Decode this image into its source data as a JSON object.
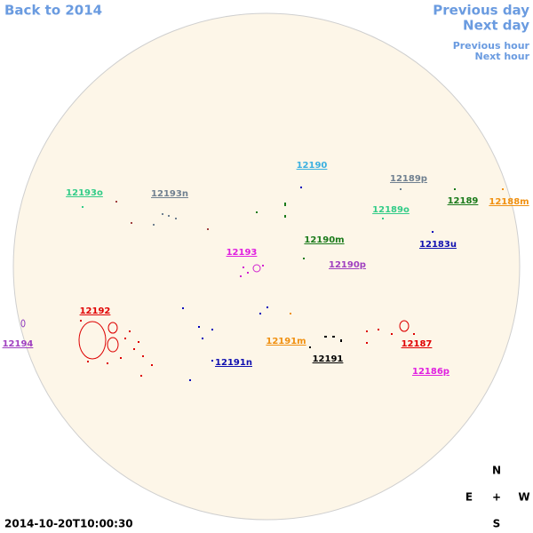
{
  "navigation": {
    "back": "Back to 2014",
    "previous_day": "Previous day",
    "next_day": "Next day",
    "previous_hour": "Previous hour",
    "next_hour": "Next hour"
  },
  "regions": [
    "12190",
    "12189p",
    "12193o",
    "12193n",
    "12189",
    "12188m",
    "12189o",
    "12190m",
    "12183u",
    "12193",
    "12190p",
    "12192",
    "12194",
    "12191m",
    "12187",
    "12191",
    "12191n",
    "12186p"
  ],
  "compass": {
    "north": "N",
    "east": "E",
    "center": "+",
    "west": "W",
    "south": "S"
  },
  "timestamp": "2014-10-20T10:00:30"
}
